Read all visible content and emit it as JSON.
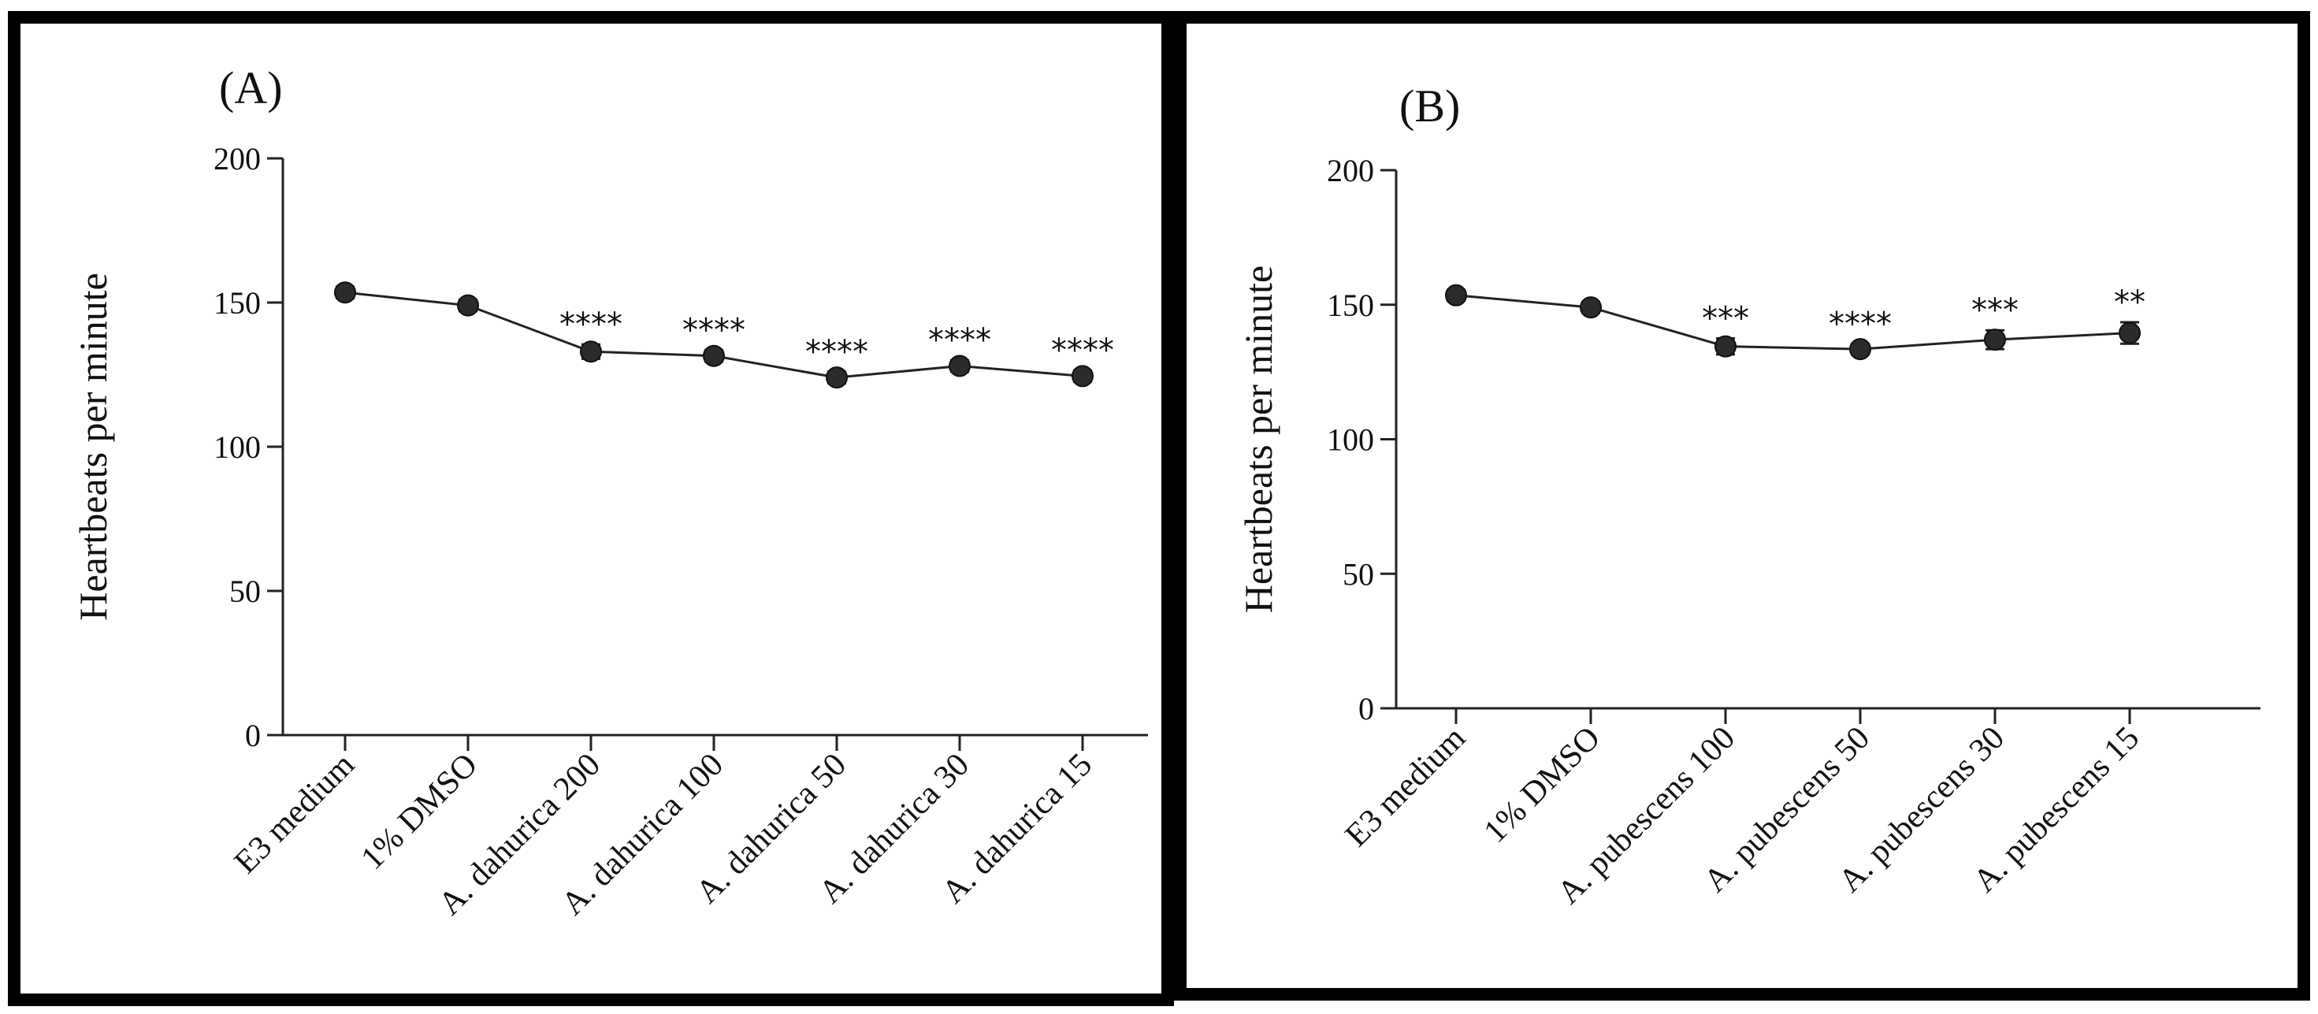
{
  "chart_data": [
    {
      "type": "line",
      "panel_label": "(A)",
      "ylabel": "Heartbeats per minute",
      "xlabel": "",
      "ylim": [
        0,
        200
      ],
      "yticks": [
        0,
        50,
        100,
        150,
        200
      ],
      "categories": [
        "E3 medium",
        "1% DMSO",
        "A. dahurica 200",
        "A. dahurica 100",
        "A. dahurica 50",
        "A. dahurica 30",
        "A. dahurica 15"
      ],
      "series": [
        {
          "name": "Heartbeats",
          "values": [
            153.5,
            149,
            133,
            131.5,
            124,
            128,
            124.5
          ],
          "errors": [
            2,
            2,
            2.5,
            2,
            2,
            2,
            2
          ]
        }
      ],
      "significance": [
        "",
        "",
        "****",
        "****",
        "****",
        "****",
        "****"
      ]
    },
    {
      "type": "line",
      "panel_label": "(B)",
      "ylabel": "Heartbeats per minute",
      "xlabel": "",
      "ylim": [
        0,
        200
      ],
      "yticks": [
        0,
        50,
        100,
        150,
        200
      ],
      "categories": [
        "E3 medium",
        "1% DMSO",
        "A. pubescens 100",
        "A. pubescens 50",
        "A. pubescens 30",
        "A. pubescens 15"
      ],
      "series": [
        {
          "name": "Heartbeats",
          "values": [
            153.5,
            149,
            134.5,
            133.5,
            137,
            139.5
          ],
          "errors": [
            2,
            2,
            3,
            2,
            3.5,
            4
          ]
        }
      ],
      "significance": [
        "",
        "",
        "***",
        "****",
        "***",
        "**"
      ]
    }
  ]
}
